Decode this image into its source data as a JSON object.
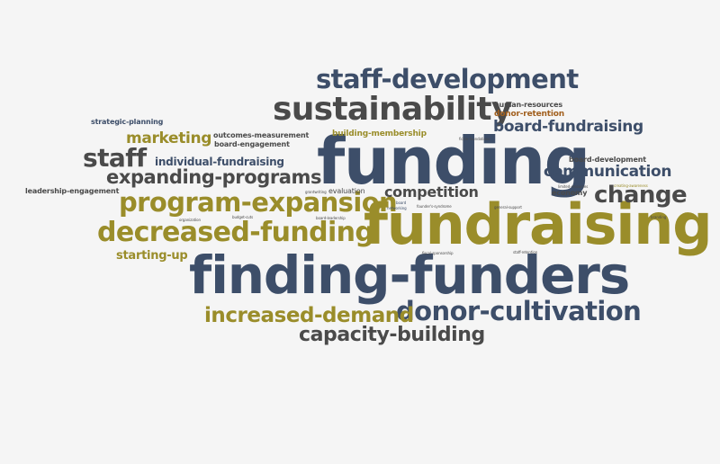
{
  "words": [
    {
      "text": "funding",
      "color": "#3d4e69"
    },
    {
      "text": "fundraising",
      "color": "#9a8d2a"
    },
    {
      "text": "finding-funders",
      "color": "#3d4e69"
    },
    {
      "text": "sustainability",
      "color": "#4a4a4a"
    },
    {
      "text": "staff-development",
      "color": "#3d4e69"
    },
    {
      "text": "program-expansion",
      "color": "#9a8d2a"
    },
    {
      "text": "decreased-funding",
      "color": "#9a8d2a"
    },
    {
      "text": "donor-cultivation",
      "color": "#3d4e69"
    },
    {
      "text": "expanding-programs",
      "color": "#4a4a4a"
    },
    {
      "text": "increased-demand",
      "color": "#9a8d2a"
    },
    {
      "text": "capacity-building",
      "color": "#4a4a4a"
    },
    {
      "text": "staff",
      "color": "#4a4a4a"
    },
    {
      "text": "change",
      "color": "#4a4a4a"
    },
    {
      "text": "communication",
      "color": "#3d4e69"
    },
    {
      "text": "board-fundraising",
      "color": "#3d4e69"
    },
    {
      "text": "competition",
      "color": "#4a4a4a"
    },
    {
      "text": "marketing",
      "color": "#9a8d2a"
    },
    {
      "text": "individual-fundraising",
      "color": "#3d4e69"
    },
    {
      "text": "starting-up",
      "color": "#9a8d2a"
    },
    {
      "text": "strategic-planning",
      "color": "#3d4e69"
    },
    {
      "text": "outcomes-measurement",
      "color": "#4a4a4a"
    },
    {
      "text": "board-engagement",
      "color": "#4a4a4a"
    },
    {
      "text": "building-membership",
      "color": "#9a8d2a"
    },
    {
      "text": "leadership-engagement",
      "color": "#4a4a4a"
    },
    {
      "text": "human-resources",
      "color": "#4a4a4a"
    },
    {
      "text": "donor-retention",
      "color": "#a2601e"
    },
    {
      "text": "board-development",
      "color": "#4a4a4a"
    },
    {
      "text": "economy",
      "color": "#4a4a4a"
    },
    {
      "text": "evaluation",
      "color": "#4a4a4a"
    },
    {
      "text": "fickle-foundations",
      "color": "#4a4a4a"
    },
    {
      "text": "limited-resources",
      "color": "#4a4a4a"
    },
    {
      "text": "creating-awareness",
      "color": "#9a8d2a"
    },
    {
      "text": "grantwriting",
      "color": "#4a4a4a"
    },
    {
      "text": "board",
      "color": "#3d4e69"
    },
    {
      "text": "networking",
      "color": "#3d4e69"
    },
    {
      "text": "founder's-syndrome",
      "color": "#4a4a4a"
    },
    {
      "text": "general-support",
      "color": "#4a4a4a"
    },
    {
      "text": "organization",
      "color": "#4a4a4a"
    },
    {
      "text": "budget-cuts",
      "color": "#4a4a4a"
    },
    {
      "text": "board-leadership",
      "color": "#4a4a4a"
    },
    {
      "text": "branding",
      "color": "#4a4a4a"
    },
    {
      "text": "fiscal-sponsorship",
      "color": "#4a4a4a"
    },
    {
      "text": "staff-retention",
      "color": "#4a4a4a"
    }
  ]
}
